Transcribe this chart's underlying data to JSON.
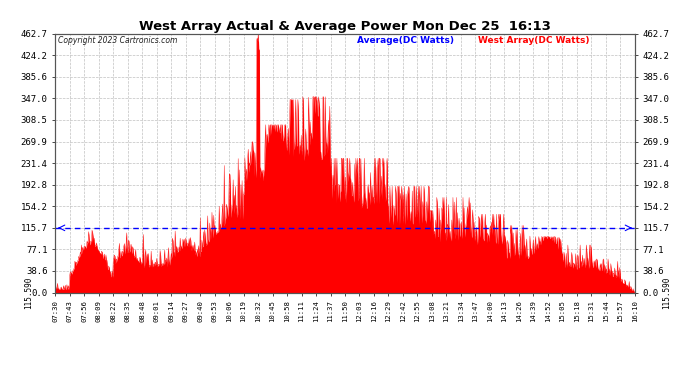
{
  "title": "West Array Actual & Average Power Mon Dec 25  16:13",
  "copyright": "Copyright 2023 Cartronics.com",
  "legend_avg": "Average(DC Watts)",
  "legend_west": "West Array(DC Watts)",
  "avg_value": 115.59,
  "y_ticks": [
    0.0,
    38.6,
    77.1,
    115.7,
    154.2,
    192.8,
    231.4,
    269.9,
    308.5,
    347.0,
    385.6,
    424.2,
    462.7
  ],
  "ylim": [
    0,
    462.7
  ],
  "background_color": "#ffffff",
  "fill_color": "#ff0000",
  "avg_line_color": "#0000ff",
  "grid_color": "#b0b0b0",
  "title_color": "#000000",
  "x_labels": [
    "07:30",
    "07:43",
    "07:56",
    "08:09",
    "08:22",
    "08:35",
    "08:48",
    "09:01",
    "09:14",
    "09:27",
    "09:40",
    "09:53",
    "10:06",
    "10:19",
    "10:32",
    "10:45",
    "10:58",
    "11:11",
    "11:24",
    "11:37",
    "11:50",
    "12:03",
    "12:16",
    "12:29",
    "12:42",
    "12:55",
    "13:08",
    "13:21",
    "13:34",
    "13:47",
    "14:00",
    "14:13",
    "14:26",
    "14:39",
    "14:52",
    "15:05",
    "15:18",
    "15:31",
    "15:44",
    "15:57",
    "16:10"
  ]
}
